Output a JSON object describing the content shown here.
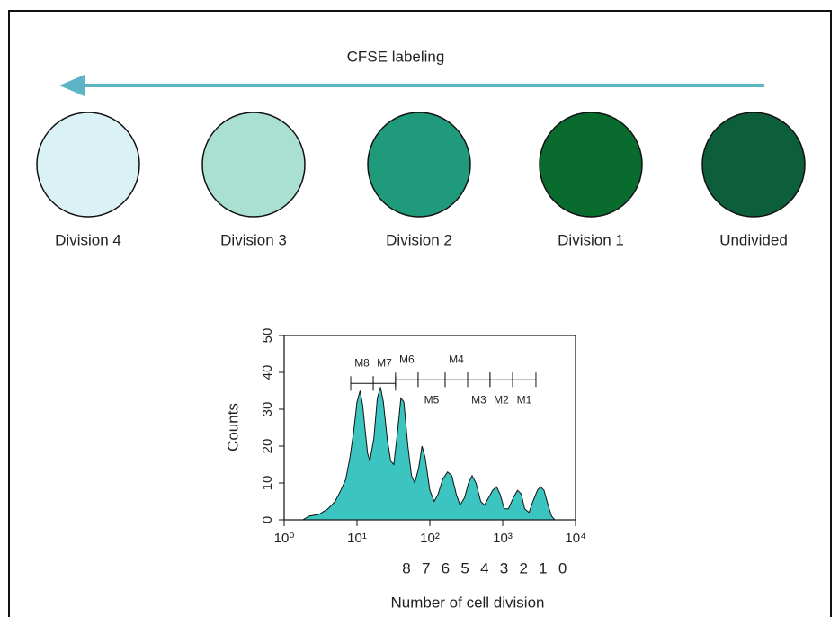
{
  "diagram": {
    "arrow_label": "CFSE labeling",
    "arrow_color": "#5bb5c4",
    "cells": [
      {
        "label": "Division 4",
        "color": "#daf2f5"
      },
      {
        "label": "Division 3",
        "color": "#a9e0d2"
      },
      {
        "label": "Division 2",
        "color": "#1f9b7c"
      },
      {
        "label": "Division 1",
        "color": "#0a6b2e"
      },
      {
        "label": "Undivided",
        "color": "#0d5e3b"
      }
    ]
  },
  "chart_data": {
    "type": "area",
    "color": "#3cc4c0",
    "y_label": "Counts",
    "x_label": "Number of cell division",
    "log_x": true,
    "xlim": [
      1,
      10000
    ],
    "ylim": [
      0,
      50
    ],
    "xticks": [
      {
        "value": 1,
        "label": "10⁰"
      },
      {
        "value": 10,
        "label": "10¹"
      },
      {
        "value": 100,
        "label": "10²"
      },
      {
        "value": 1000,
        "label": "10³"
      },
      {
        "value": 10000,
        "label": "10⁴"
      }
    ],
    "yticks": [
      0,
      10,
      20,
      30,
      40,
      50
    ],
    "x": [
      1.8,
      2.2,
      3,
      4,
      5,
      6,
      7,
      8,
      9,
      10,
      11,
      12,
      13,
      14,
      15,
      17,
      19,
      21,
      23,
      26,
      29,
      32,
      36,
      40,
      44,
      50,
      56,
      62,
      70,
      78,
      86,
      100,
      115,
      130,
      150,
      175,
      200,
      230,
      260,
      300,
      340,
      380,
      430,
      500,
      560,
      640,
      730,
      820,
      920,
      1050,
      1200,
      1400,
      1600,
      1800,
      2000,
      2300,
      2600,
      3000,
      3300,
      3700,
      4200,
      4700,
      5200
    ],
    "values": [
      0,
      1,
      1.5,
      3,
      5,
      8,
      11,
      17,
      24,
      32,
      35,
      31,
      24,
      18,
      16,
      22,
      33,
      36,
      32,
      22,
      16,
      15,
      24,
      33,
      32,
      20,
      12,
      10,
      14,
      20,
      17,
      8,
      5,
      7,
      11,
      13,
      12,
      7,
      4,
      6,
      10,
      12,
      10,
      5,
      4,
      6,
      8,
      9,
      7,
      3,
      3,
      6,
      8,
      7,
      3,
      2,
      5,
      8,
      9,
      8,
      4,
      1,
      0
    ],
    "markers": [
      {
        "label": "M8",
        "range": [
          8.2,
          16.7
        ],
        "y": 37
      },
      {
        "label": "M7",
        "range": [
          16.7,
          33.8
        ],
        "y": 37
      },
      {
        "label": "M6",
        "range": [
          33.8,
          69
        ],
        "y": 38
      },
      {
        "label": "M5",
        "range": [
          69,
          162
        ],
        "y": 38
      },
      {
        "label": "M4",
        "range": [
          162,
          330
        ],
        "y": 38
      },
      {
        "label": "M3",
        "range": [
          330,
          670
        ],
        "y": 38
      },
      {
        "label": "M2",
        "range": [
          670,
          1370
        ],
        "y": 38
      },
      {
        "label": "M1",
        "range": [
          1370,
          2860
        ],
        "y": 38
      }
    ],
    "division_labels": [
      "8",
      "7",
      "6",
      "5",
      "4",
      "3",
      "2",
      "1",
      "0"
    ]
  }
}
